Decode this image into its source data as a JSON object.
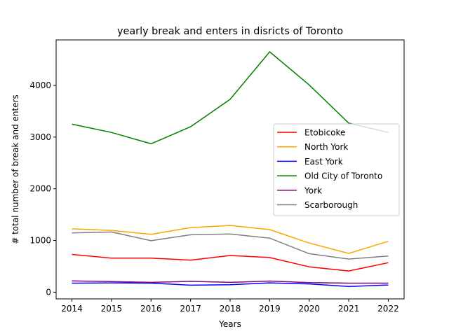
{
  "chart_data": {
    "type": "line",
    "title": "yearly break and enters in disricts of Toronto",
    "xlabel": "Years",
    "ylabel": "# total number of break and enters",
    "x": [
      2014,
      2015,
      2016,
      2017,
      2018,
      2019,
      2020,
      2021,
      2022
    ],
    "xlim": [
      2013.6,
      2022.4
    ],
    "ylim": [
      -130,
      4880
    ],
    "x_ticks": [
      2014,
      2015,
      2016,
      2017,
      2018,
      2019,
      2020,
      2021,
      2022
    ],
    "y_ticks": [
      0,
      1000,
      2000,
      3000,
      4000
    ],
    "grid": false,
    "legend_position": "center-right",
    "series": [
      {
        "name": "Etobicoke",
        "color": "#ff0000",
        "values": [
          730,
          660,
          660,
          620,
          710,
          670,
          490,
          410,
          570
        ]
      },
      {
        "name": "North York",
        "color": "#ffa500",
        "values": [
          1225,
          1195,
          1120,
          1250,
          1290,
          1210,
          950,
          750,
          985
        ]
      },
      {
        "name": "East York",
        "color": "#0000ff",
        "values": [
          175,
          180,
          175,
          135,
          145,
          180,
          160,
          110,
          140
        ]
      },
      {
        "name": "Old City of Toronto",
        "color": "#008000",
        "values": [
          3250,
          3090,
          2870,
          3200,
          3730,
          4650,
          4010,
          3270,
          3090
        ]
      },
      {
        "name": "York",
        "color": "#800080",
        "values": [
          220,
          205,
          190,
          210,
          190,
          215,
          185,
          175,
          175
        ]
      },
      {
        "name": "Scarborough",
        "color": "#808080",
        "values": [
          1145,
          1165,
          995,
          1110,
          1125,
          1045,
          745,
          640,
          700
        ]
      }
    ]
  }
}
